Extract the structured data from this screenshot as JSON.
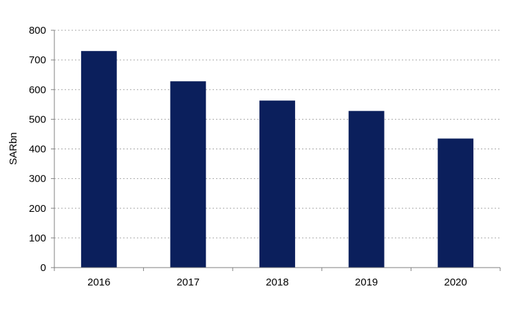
{
  "chart_data": {
    "type": "bar",
    "title": "",
    "xlabel": "",
    "ylabel": "SARbn",
    "categories": [
      "2016",
      "2017",
      "2018",
      "2019",
      "2020"
    ],
    "values": [
      730,
      628,
      563,
      528,
      435
    ],
    "ylim": [
      0,
      800
    ],
    "yticks": [
      0,
      100,
      200,
      300,
      400,
      500,
      600,
      700,
      800
    ],
    "grid": "horizontal dotted",
    "legend": "none",
    "colors": {
      "bar": "#0b1f5c",
      "grid": "#a6a6a6",
      "axis": "#7f7f7f",
      "text": "#000000"
    }
  }
}
